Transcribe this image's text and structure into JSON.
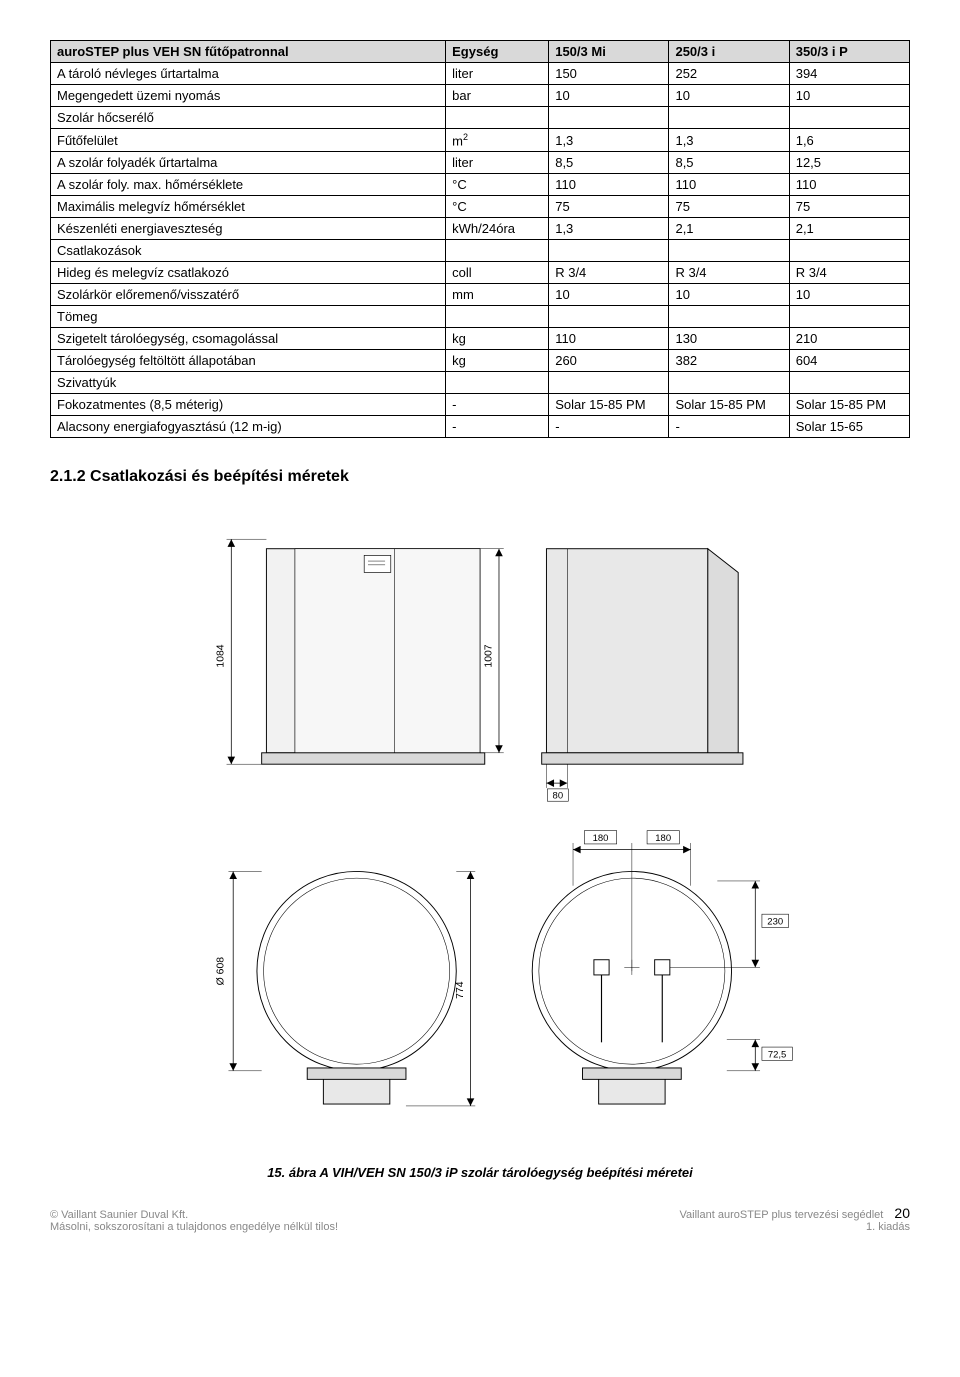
{
  "table": {
    "headers": [
      "auroSTEP plus VEH SN fűtőpatronnal",
      "Egység",
      "150/3 Mi",
      "250/3 i",
      "350/3 i P"
    ],
    "rows": [
      {
        "label": "A tároló névleges űrtartalma",
        "unit": "liter",
        "v1": "150",
        "v2": "252",
        "v3": "394"
      },
      {
        "label": "Megengedett üzemi nyomás",
        "unit": "bar",
        "v1": "10",
        "v2": "10",
        "v3": "10"
      },
      {
        "label": "Szolár hőcserélő",
        "unit": "",
        "v1": "",
        "v2": "",
        "v3": ""
      },
      {
        "label": "Fűtőfelület",
        "unit_html": "m²",
        "unit": "m2",
        "v1": "1,3",
        "v2": "1,3",
        "v3": "1,6"
      },
      {
        "label": "A szolár folyadék űrtartalma",
        "unit": "liter",
        "v1": "8,5",
        "v2": "8,5",
        "v3": "12,5"
      },
      {
        "label": "A szolár foly. max. hőmérséklete",
        "unit": "°C",
        "v1": "110",
        "v2": "110",
        "v3": "110"
      },
      {
        "label": "Maximális melegvíz hőmérséklet",
        "unit": "°C",
        "v1": "75",
        "v2": "75",
        "v3": "75"
      },
      {
        "label": "Készenléti energiaveszteség",
        "unit": "kWh/24óra",
        "v1": "1,3",
        "v2": "2,1",
        "v3": "2,1"
      },
      {
        "label": "Csatlakozások",
        "unit": "",
        "v1": "",
        "v2": "",
        "v3": ""
      },
      {
        "label": "Hideg és melegvíz csatlakozó",
        "unit": "coll",
        "v1": "R 3/4",
        "v2": "R 3/4",
        "v3": "R 3/4"
      },
      {
        "label": "Szolárkör előremenő/visszatérő",
        "unit": "mm",
        "v1": "10",
        "v2": "10",
        "v3": "10"
      },
      {
        "label": "Tömeg",
        "unit": "",
        "v1": "",
        "v2": "",
        "v3": ""
      },
      {
        "label": "Szigetelt tárolóegység, csomagolással",
        "unit": "kg",
        "v1": "110",
        "v2": "130",
        "v3": "210"
      },
      {
        "label": "Tárolóegység feltöltött állapotában",
        "unit": "kg",
        "v1": "260",
        "v2": "382",
        "v3": "604"
      },
      {
        "label": "Szivattyúk",
        "unit": "",
        "v1": "",
        "v2": "",
        "v3": ""
      },
      {
        "label": "Fokozatmentes (8,5 méterig)",
        "unit": "-",
        "v1": "Solar 15-85 PM",
        "v2": "Solar 15-85 PM",
        "v3": "Solar 15-85 PM"
      },
      {
        "label": "Alacsony energiafogyasztású (12 m-ig)",
        "unit": "-",
        "v1": "-",
        "v2": "-",
        "v3": "Solar 15-65"
      }
    ]
  },
  "section_title": "2.1.2 Csatlakozási és beépítési méretek",
  "diagram": {
    "dim_1084": "1084",
    "dim_1007": "1007",
    "dim_80": "80",
    "dim_180a": "180",
    "dim_180b": "180",
    "dim_230": "230",
    "dim_72_5": "72,5",
    "dim_774": "774",
    "dim_dia608": "Ø 608",
    "colors": {
      "stroke": "#000000",
      "fill_light": "#f2f2f2",
      "fill_mid": "#dddddd",
      "fill_dark": "#bfbfbf",
      "bg": "#ffffff",
      "text": "#000000"
    },
    "font_size_dim": 11
  },
  "caption": "15. ábra A VIH/VEH SN 150/3 iP szolár tárolóegység beépítési méretei",
  "footer": {
    "left_line1": "© Vaillant Saunier Duval Kft.",
    "left_line2": "Másolni, sokszorosítani a tulajdonos engedélye nélkül tilos!",
    "right_line1": "Vaillant auroSTEP plus tervezési segédlet",
    "right_line2": "1. kiadás",
    "page": "20"
  }
}
